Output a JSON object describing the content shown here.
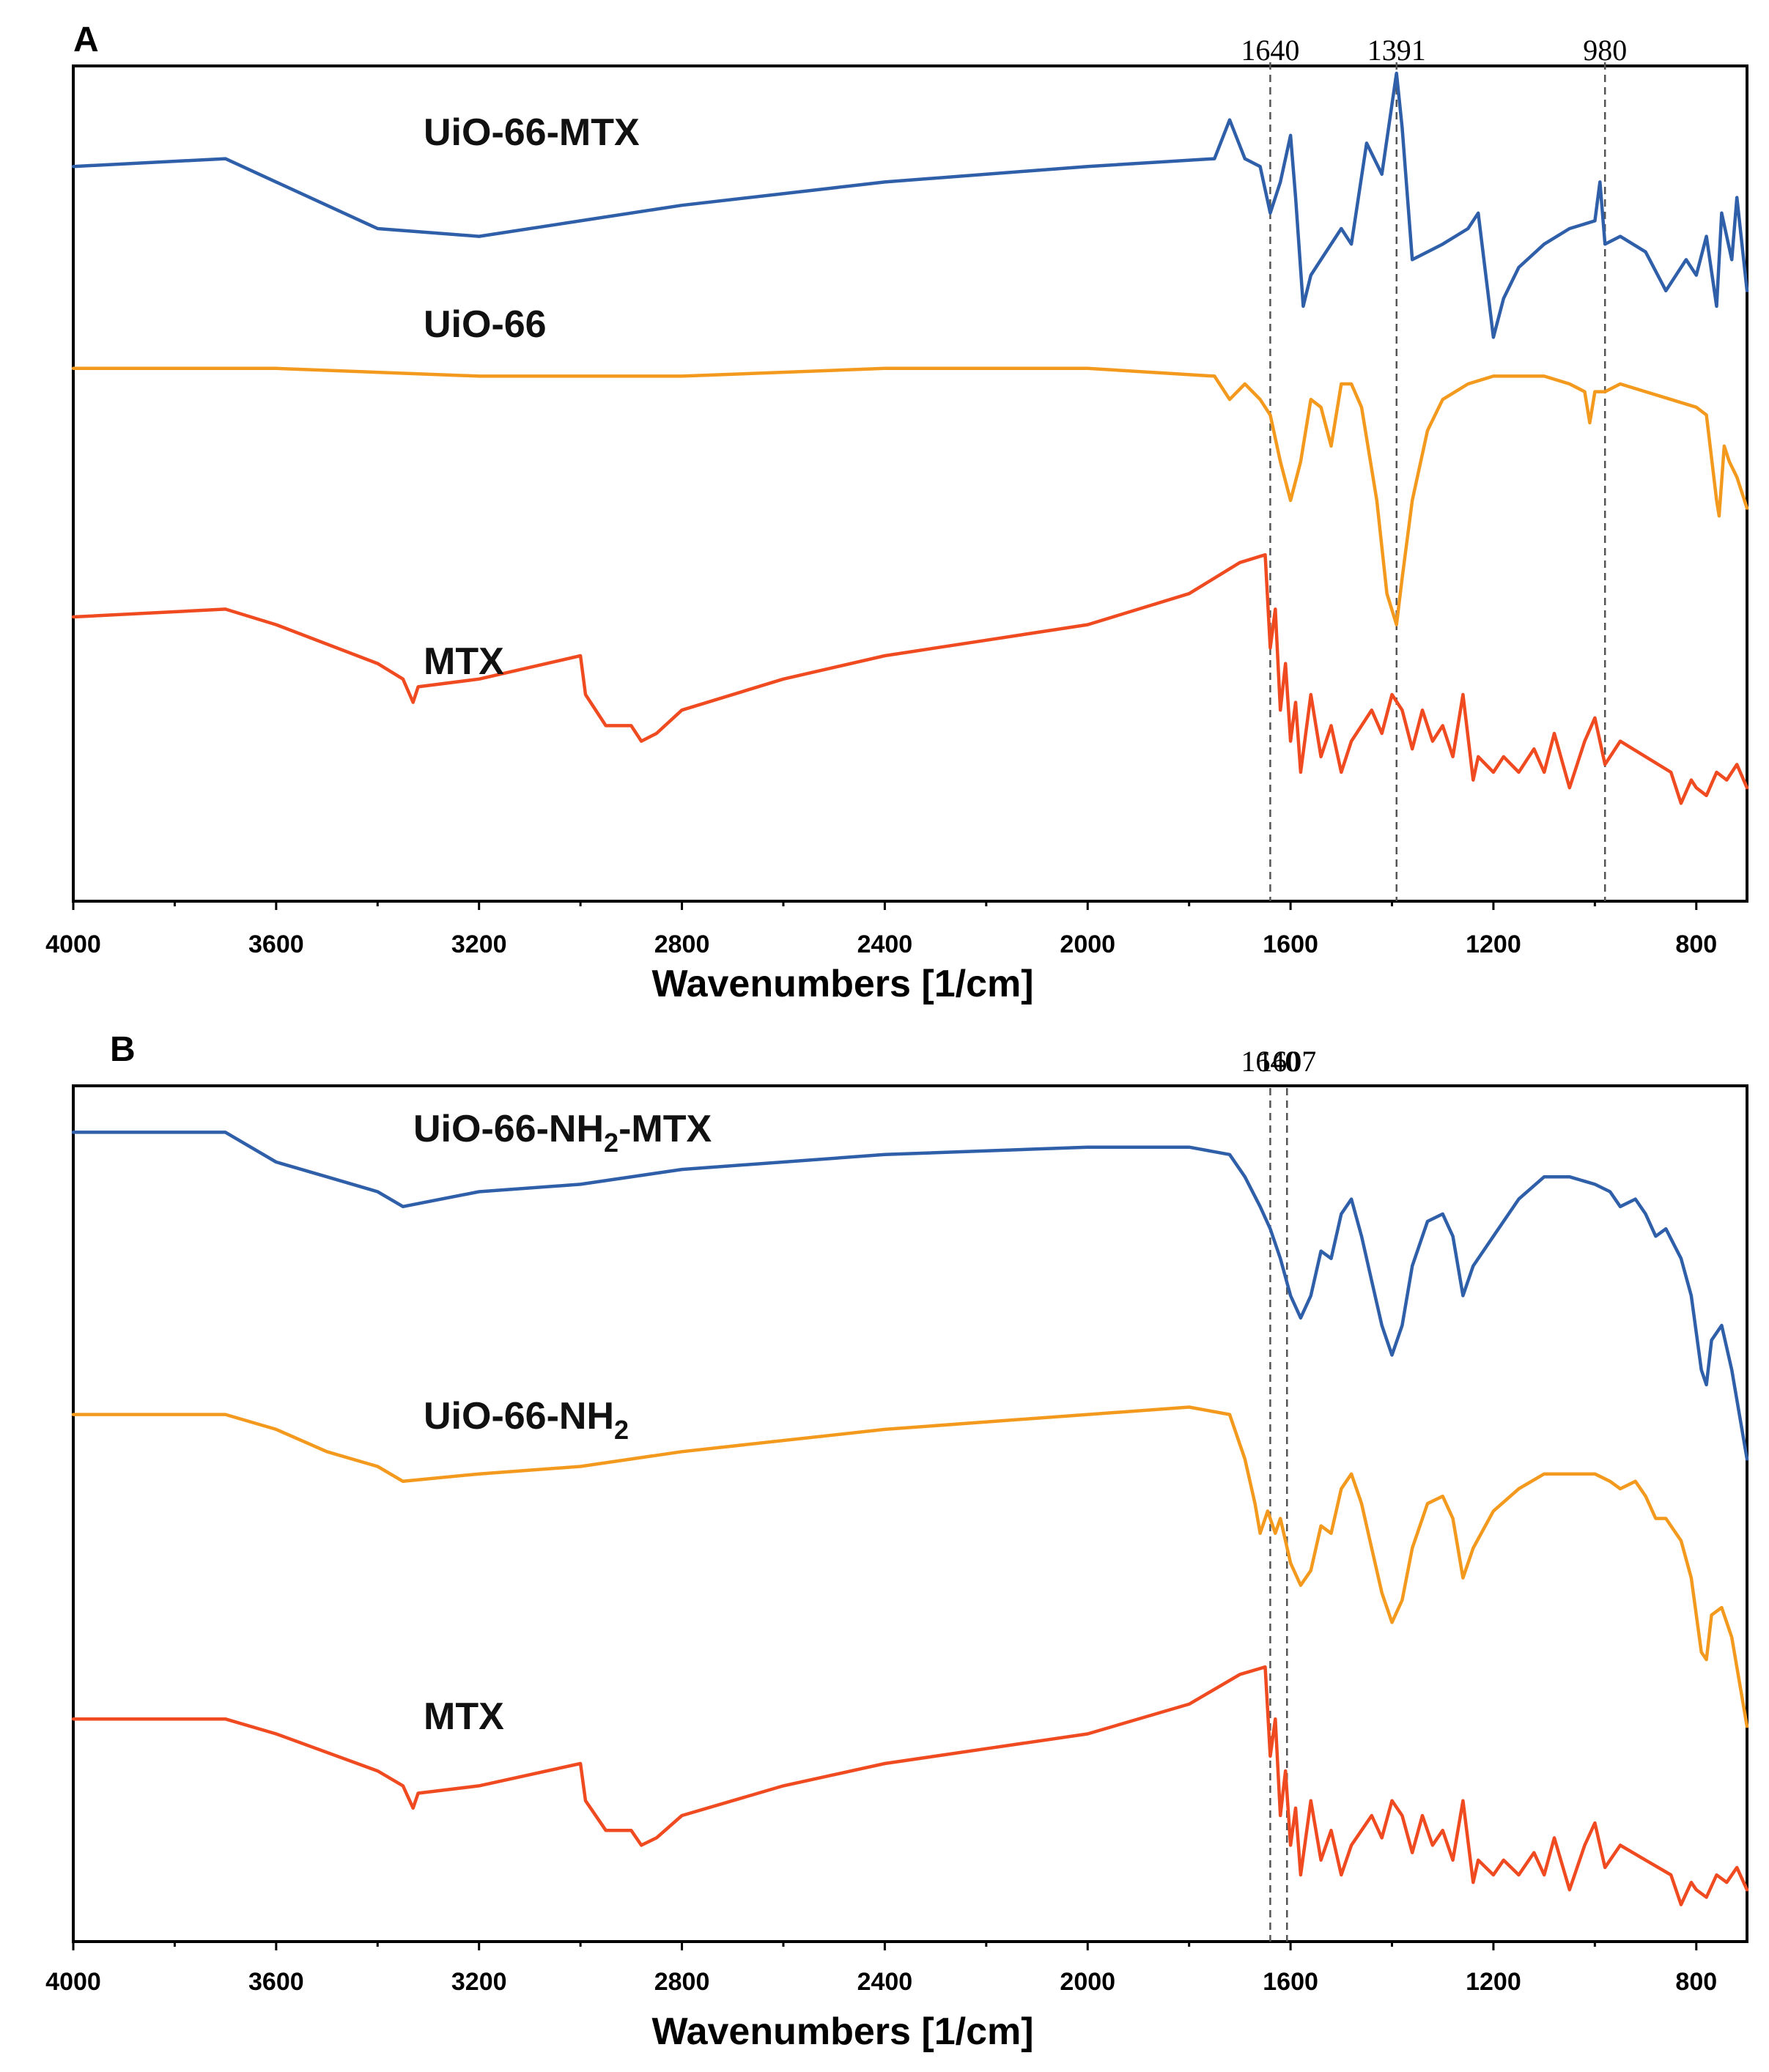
{
  "chart_data": [
    {
      "panel": "A",
      "type": "line",
      "xlabel": "Wavenumbers [1/cm]",
      "xlim": [
        4000,
        700
      ],
      "x_ticks": [
        4000,
        3600,
        3200,
        2800,
        2400,
        2000,
        1600,
        1200,
        800
      ],
      "ref_lines": [
        {
          "x": 1640,
          "label": "1640"
        },
        {
          "x": 1391,
          "label": "1391"
        },
        {
          "x": 980,
          "label": "980"
        }
      ],
      "series": [
        {
          "name": "UiO-66-MTX",
          "color": "#2e5fa8",
          "x": [
            4000,
            3700,
            3600,
            3400,
            3200,
            3000,
            2800,
            2400,
            2000,
            1750,
            1720,
            1690,
            1660,
            1640,
            1620,
            1600,
            1590,
            1575,
            1560,
            1540,
            1500,
            1480,
            1450,
            1420,
            1400,
            1391,
            1380,
            1360,
            1300,
            1250,
            1230,
            1200,
            1180,
            1150,
            1100,
            1050,
            1000,
            990,
            980,
            950,
            900,
            860,
            820,
            800,
            780,
            760,
            750,
            730,
            720,
            700
          ],
          "y": [
            88,
            89,
            86,
            80,
            79,
            81,
            83,
            86,
            88,
            89,
            94,
            89,
            88,
            82,
            86,
            92,
            84,
            70,
            74,
            76,
            80,
            78,
            91,
            87,
            96,
            100,
            93,
            76,
            78,
            80,
            82,
            66,
            71,
            75,
            78,
            80,
            81,
            86,
            78,
            79,
            77,
            72,
            76,
            74,
            79,
            70,
            82,
            76,
            84,
            72
          ]
        },
        {
          "name": "UiO-66",
          "color": "#f39a1e",
          "x": [
            4000,
            3600,
            3200,
            2800,
            2400,
            2000,
            1750,
            1720,
            1690,
            1660,
            1640,
            1620,
            1600,
            1580,
            1560,
            1540,
            1520,
            1500,
            1480,
            1460,
            1430,
            1410,
            1391,
            1380,
            1360,
            1330,
            1300,
            1250,
            1200,
            1150,
            1100,
            1050,
            1020,
            1010,
            1000,
            980,
            950,
            900,
            850,
            800,
            780,
            760,
            755,
            745,
            735,
            720,
            700
          ],
          "y": [
            62,
            62,
            61,
            61,
            62,
            62,
            61,
            58,
            60,
            58,
            56,
            50,
            45,
            50,
            58,
            57,
            52,
            60,
            60,
            57,
            45,
            33,
            29,
            35,
            45,
            54,
            58,
            60,
            61,
            61,
            61,
            60,
            59,
            55,
            59,
            59,
            60,
            59,
            58,
            57,
            56,
            45,
            43,
            52,
            50,
            48,
            44
          ]
        },
        {
          "name": "MTX",
          "color": "#f04a21",
          "x": [
            4000,
            3700,
            3600,
            3400,
            3350,
            3330,
            3320,
            3200,
            3000,
            2990,
            2950,
            2900,
            2880,
            2850,
            2800,
            2600,
            2400,
            2200,
            2000,
            1800,
            1700,
            1650,
            1640,
            1630,
            1620,
            1610,
            1600,
            1590,
            1580,
            1560,
            1540,
            1520,
            1500,
            1480,
            1460,
            1440,
            1420,
            1400,
            1380,
            1360,
            1340,
            1320,
            1300,
            1280,
            1260,
            1240,
            1230,
            1200,
            1180,
            1150,
            1120,
            1100,
            1080,
            1050,
            1020,
            1000,
            980,
            950,
            900,
            850,
            830,
            810,
            800,
            780,
            760,
            740,
            720,
            700
          ],
          "y": [
            30,
            31,
            29,
            24,
            22,
            19,
            21,
            22,
            25,
            20,
            16,
            16,
            14,
            15,
            18,
            22,
            25,
            27,
            29,
            33,
            37,
            38,
            26,
            31,
            18,
            24,
            14,
            19,
            10,
            20,
            12,
            16,
            10,
            14,
            16,
            18,
            15,
            20,
            18,
            13,
            18,
            14,
            16,
            12,
            20,
            9,
            12,
            10,
            12,
            10,
            13,
            10,
            15,
            8,
            14,
            17,
            11,
            14,
            12,
            10,
            6,
            9,
            8,
            7,
            10,
            9,
            11,
            8
          ]
        }
      ]
    },
    {
      "panel": "B",
      "type": "line",
      "xlabel": "Wavenumbers [1/cm]",
      "xlim": [
        4000,
        700
      ],
      "x_ticks": [
        4000,
        3600,
        3200,
        2800,
        2400,
        2000,
        1600,
        1200,
        800
      ],
      "ref_lines": [
        {
          "x": 1640,
          "label": "1640"
        },
        {
          "x": 1607,
          "label": "1607"
        }
      ],
      "series": [
        {
          "name": "UiO-66-NH",
          "name_subscript": "2",
          "name_suffix": "-MTX",
          "color": "#2e5fa8",
          "x": [
            4000,
            3700,
            3600,
            3500,
            3400,
            3350,
            3200,
            3000,
            2800,
            2400,
            2000,
            1800,
            1720,
            1690,
            1660,
            1640,
            1620,
            1600,
            1580,
            1560,
            1540,
            1520,
            1500,
            1480,
            1460,
            1440,
            1420,
            1400,
            1380,
            1360,
            1330,
            1300,
            1280,
            1260,
            1240,
            1200,
            1150,
            1100,
            1050,
            1000,
            970,
            950,
            920,
            900,
            880,
            860,
            830,
            810,
            790,
            780,
            770,
            750,
            730,
            700
          ],
          "y": [
            92,
            92,
            88,
            86,
            84,
            82,
            84,
            85,
            87,
            89,
            90,
            90,
            89,
            86,
            82,
            79,
            75,
            70,
            67,
            70,
            76,
            75,
            81,
            83,
            78,
            72,
            66,
            62,
            66,
            74,
            80,
            81,
            78,
            70,
            74,
            78,
            83,
            86,
            86,
            85,
            84,
            82,
            83,
            81,
            78,
            79,
            75,
            70,
            60,
            58,
            64,
            66,
            60,
            48
          ]
        },
        {
          "name": "UiO-66-NH",
          "name_subscript": "2",
          "name_suffix": "",
          "color": "#f39a1e",
          "x": [
            4000,
            3700,
            3600,
            3500,
            3400,
            3350,
            3200,
            3000,
            2800,
            2400,
            2000,
            1800,
            1720,
            1690,
            1670,
            1660,
            1645,
            1630,
            1620,
            1600,
            1580,
            1560,
            1540,
            1520,
            1500,
            1480,
            1460,
            1440,
            1420,
            1400,
            1380,
            1360,
            1330,
            1300,
            1280,
            1260,
            1240,
            1200,
            1150,
            1100,
            1050,
            1000,
            970,
            950,
            920,
            900,
            880,
            860,
            830,
            810,
            790,
            780,
            770,
            750,
            730,
            700
          ],
          "y": [
            54,
            54,
            52,
            49,
            47,
            45,
            46,
            47,
            49,
            52,
            54,
            55,
            54,
            48,
            42,
            38,
            41,
            38,
            40,
            34,
            31,
            33,
            39,
            38,
            44,
            46,
            42,
            36,
            30,
            26,
            29,
            36,
            42,
            43,
            40,
            32,
            36,
            41,
            44,
            46,
            46,
            46,
            45,
            44,
            45,
            43,
            40,
            40,
            37,
            32,
            22,
            21,
            27,
            28,
            24,
            12
          ]
        },
        {
          "name": "MTX",
          "color": "#f04a21",
          "x": [
            4000,
            3700,
            3600,
            3400,
            3350,
            3330,
            3320,
            3200,
            3000,
            2990,
            2950,
            2900,
            2880,
            2850,
            2800,
            2600,
            2400,
            2200,
            2000,
            1800,
            1700,
            1650,
            1640,
            1630,
            1620,
            1610,
            1600,
            1590,
            1580,
            1560,
            1540,
            1520,
            1500,
            1480,
            1460,
            1440,
            1420,
            1400,
            1380,
            1360,
            1340,
            1320,
            1300,
            1280,
            1260,
            1240,
            1230,
            1200,
            1180,
            1150,
            1120,
            1100,
            1080,
            1050,
            1020,
            1000,
            980,
            950,
            900,
            850,
            830,
            810,
            800,
            780,
            760,
            740,
            720,
            700
          ],
          "y": [
            13,
            13,
            11,
            6,
            4,
            1,
            3,
            4,
            7,
            2,
            -2,
            -2,
            -4,
            -3,
            0,
            4,
            7,
            9,
            11,
            15,
            19,
            20,
            8,
            13,
            0,
            6,
            -4,
            1,
            -8,
            2,
            -6,
            -2,
            -8,
            -4,
            -2,
            0,
            -3,
            2,
            0,
            -5,
            0,
            -4,
            -2,
            -6,
            2,
            -9,
            -6,
            -8,
            -6,
            -8,
            -5,
            -8,
            -3,
            -10,
            -4,
            -1,
            -7,
            -4,
            -6,
            -8,
            -12,
            -9,
            -10,
            -11,
            -8,
            -9,
            -7,
            -10
          ]
        }
      ]
    }
  ]
}
